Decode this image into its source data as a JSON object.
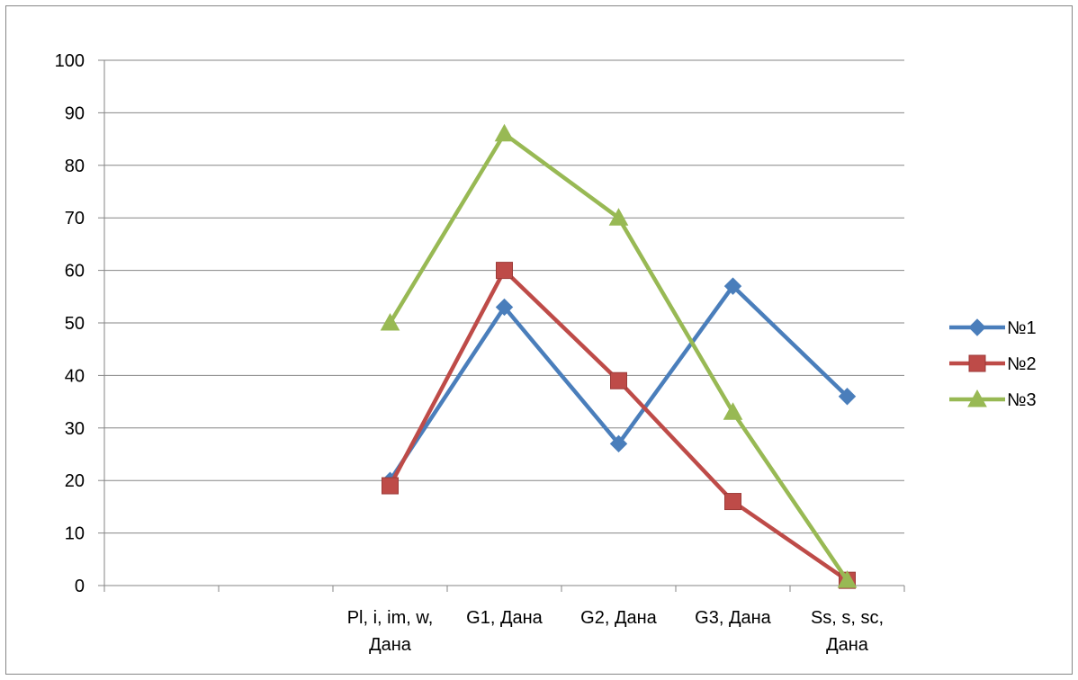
{
  "chart_data": {
    "type": "line",
    "title": "",
    "xlabel": "",
    "ylabel": "",
    "ylim": [
      0,
      100
    ],
    "yticks": [
      0,
      10,
      20,
      30,
      40,
      50,
      60,
      70,
      80,
      90,
      100
    ],
    "categories": [
      [
        "",
        ""
      ],
      [
        "",
        ""
      ],
      [
        "Pl, i, im, w,",
        "Дана"
      ],
      [
        "G1, Дана",
        ""
      ],
      [
        "G2, Дана",
        ""
      ],
      [
        "G3, Дана",
        ""
      ],
      [
        "Ss, s, sc,",
        "Дана"
      ]
    ],
    "grid": true,
    "legend_position": "right",
    "series": [
      {
        "name": "№1",
        "color": "#4a7ebb",
        "marker": "diamond",
        "values": [
          null,
          null,
          20,
          53,
          27,
          57,
          36
        ]
      },
      {
        "name": "№2",
        "color": "#be4b48",
        "marker": "square",
        "values": [
          null,
          null,
          19,
          60,
          39,
          16,
          1
        ]
      },
      {
        "name": "№3",
        "color": "#98b954",
        "marker": "triangle",
        "values": [
          null,
          null,
          50,
          86,
          70,
          33,
          1
        ]
      }
    ]
  }
}
